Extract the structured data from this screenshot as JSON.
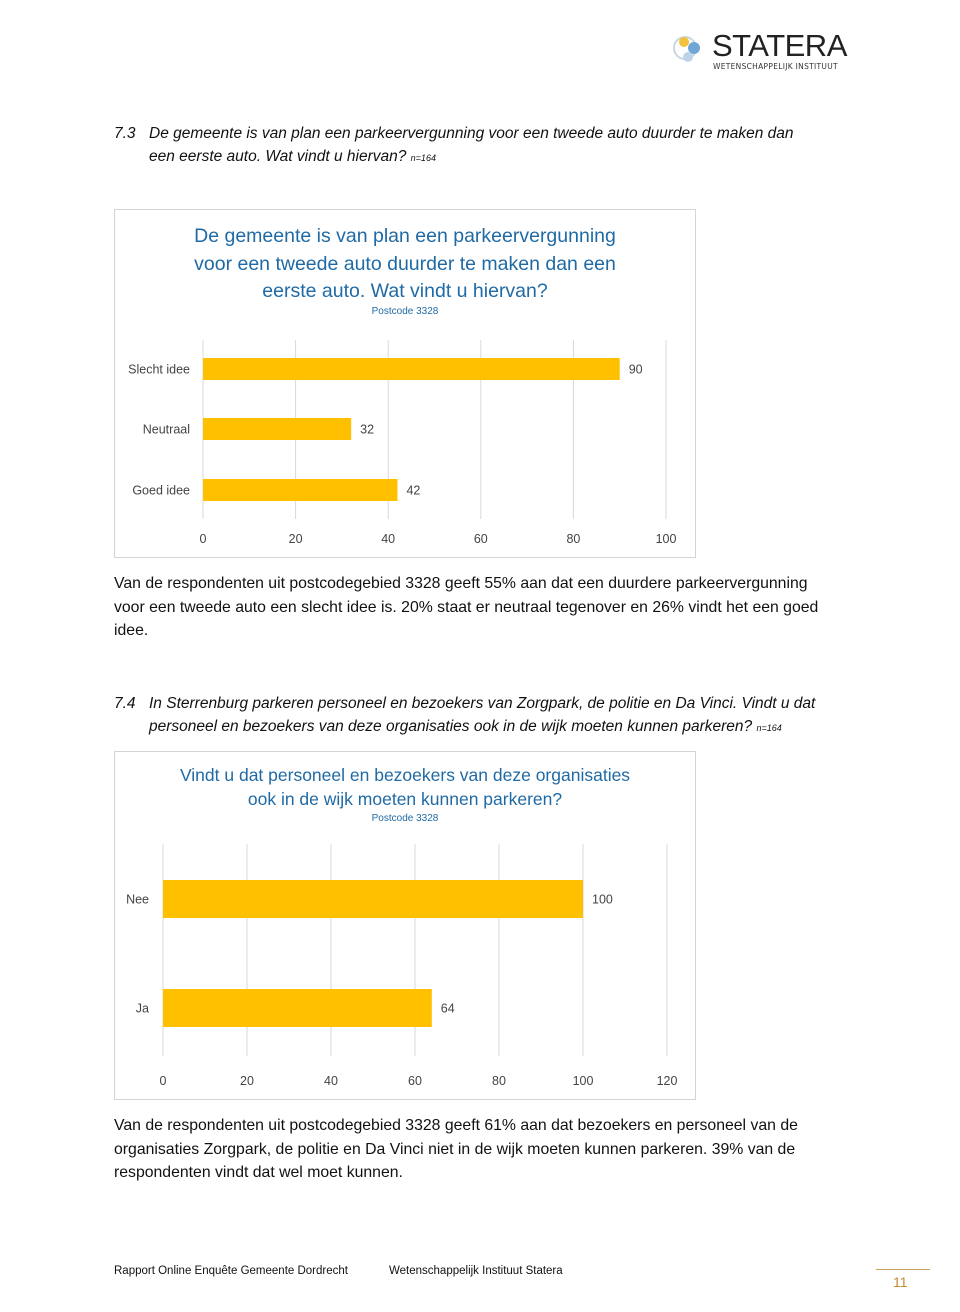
{
  "header": {
    "logo_name": "STATERA",
    "logo_subtitle": "WETENSCHAPPELIJK INSTITUUT",
    "logo_icon": "statera-circles-icon"
  },
  "section1": {
    "number": "7.3",
    "question_line1": "De gemeente is van plan een parkeervergunning voor een tweede auto duurder te maken dan",
    "question_line2": "een eerste auto. Wat vindt u hiervan?",
    "n_label": "n=164",
    "chart_title_line1": "De gemeente is van plan een parkeervergunning",
    "chart_title_line2": "voor een tweede auto duurder te maken dan een",
    "chart_title_line3": "eerste auto. Wat vindt u hiervan?",
    "chart_subtitle": "Postcode 3328",
    "paragraph_line1": "Van de respondenten uit postcodegebied 3328 geeft 55% aan dat een duurdere parkeervergunning",
    "paragraph_line2": "voor een tweede auto een slecht idee is. 20% staat er neutraal tegenover en 26% vindt het een goed",
    "paragraph_line3": "idee."
  },
  "section2": {
    "number": "7.4",
    "question_line1": "In Sterrenburg parkeren personeel en bezoekers van Zorgpark, de politie en Da Vinci. Vindt u dat",
    "question_line2": "personeel en bezoekers van deze organisaties ook in de wijk moeten kunnen parkeren?",
    "n_label": "n=164",
    "chart_title_line1": "Vindt u dat personeel en bezoekers van deze organisaties",
    "chart_title_line2": "ook in de wijk moeten kunnen parkeren?",
    "chart_subtitle": "Postcode 3328",
    "paragraph_line1": "Van de respondenten uit postcodegebied 3328 geeft 61% aan dat bezoekers en personeel van de",
    "paragraph_line2": "organisaties Zorgpark, de politie en Da Vinci niet in de wijk moeten kunnen parkeren. 39% van de",
    "paragraph_line3": "respondenten vindt dat wel moet kunnen."
  },
  "footer": {
    "left": "Rapport Online Enquête Gemeente Dordrecht",
    "middle": "Wetenschappelijk Instituut Statera",
    "page": "11"
  },
  "colors": {
    "bar": "#FFC000",
    "title": "#1F6AA5",
    "grid": "#D9D9D9",
    "page_number": "#C58A2A"
  },
  "chart_data": [
    {
      "type": "bar",
      "orientation": "horizontal",
      "title": "De gemeente is van plan een parkeervergunning voor een tweede auto duurder te maken dan een eerste auto. Wat vindt u hiervan?",
      "subtitle": "Postcode 3328",
      "categories": [
        "Slecht idee",
        "Neutraal",
        "Goed idee"
      ],
      "values": [
        90,
        32,
        42
      ],
      "xlim": [
        0,
        100
      ],
      "xticks": [
        0,
        20,
        40,
        60,
        80,
        100
      ],
      "grid": true,
      "legend": "none"
    },
    {
      "type": "bar",
      "orientation": "horizontal",
      "title": "Vindt u dat personeel en bezoekers van deze organisaties ook in de wijk moeten kunnen parkeren?",
      "subtitle": "Postcode 3328",
      "categories": [
        "Nee",
        "Ja"
      ],
      "values": [
        100,
        64
      ],
      "xlim": [
        0,
        120
      ],
      "xticks": [
        0,
        20,
        40,
        60,
        80,
        100,
        120
      ],
      "grid": true,
      "legend": "none"
    }
  ]
}
